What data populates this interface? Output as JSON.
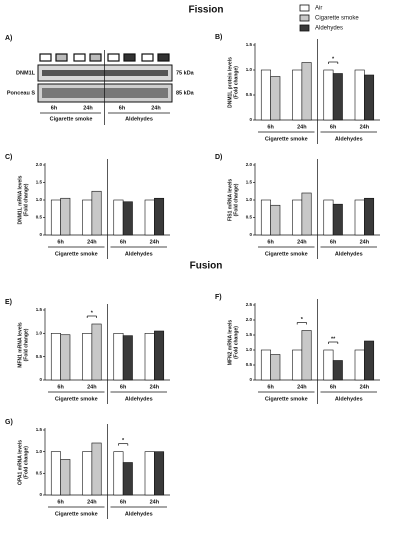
{
  "headings": [
    "Fission",
    "Fusion"
  ],
  "blot": {
    "panel": "A)",
    "bands": [
      "DNM1L",
      "Ponceau S"
    ],
    "weights": [
      "75 kDa",
      "85 kDa"
    ],
    "times": [
      "6h",
      "24h",
      "6h",
      "24h"
    ],
    "groups": [
      "Cigarette smoke",
      "Aldehydes"
    ]
  },
  "chart_data": [
    {
      "type": "bar",
      "panel": "B)",
      "ylabel": [
        "DNM1L protein levels",
        "(Fold change)"
      ],
      "categories": [
        "6h",
        "24h",
        "6h",
        "24h"
      ],
      "groups": [
        "Cigarette smoke",
        "Aldehydes"
      ],
      "series": [
        {
          "name": "Air",
          "color": "#ffffff",
          "values": [
            1.0,
            1.0,
            1.0,
            1.0
          ]
        },
        {
          "name": "Cigarette smoke",
          "color": "#c8c8c8",
          "values": [
            0.87,
            1.15,
            null,
            null
          ]
        },
        {
          "name": "Aldehydes",
          "color": "#3a3a3a",
          "values": [
            null,
            null,
            0.93,
            0.9
          ]
        }
      ],
      "significance": [
        null,
        null,
        "*",
        null
      ],
      "ylim": [
        0,
        1.5
      ],
      "yticks": [
        0,
        0.5,
        {
          "value": 1.0,
          "label": "1.0"
        },
        1.5
      ]
    },
    {
      "type": "bar",
      "panel": "C)",
      "ylabel": [
        "DNM1L mRNA levels",
        "(Fold change)"
      ],
      "categories": [
        "6h",
        "24h",
        "6h",
        "24h"
      ],
      "groups": [
        "Cigarette smoke",
        "Aldehydes"
      ],
      "series": [
        {
          "name": "Air",
          "color": "#ffffff",
          "values": [
            1.0,
            1.0,
            1.0,
            1.0
          ]
        },
        {
          "name": "Cigarette smoke",
          "color": "#c8c8c8",
          "values": [
            1.05,
            1.25,
            null,
            null
          ]
        },
        {
          "name": "Aldehydes",
          "color": "#3a3a3a",
          "values": [
            null,
            null,
            0.95,
            1.05
          ]
        }
      ],
      "significance": [
        null,
        null,
        null,
        null
      ],
      "ylim": [
        0,
        2.0
      ],
      "yticks": [
        0,
        0.5,
        {
          "value": 1.0,
          "label": "1.0"
        },
        1.5,
        {
          "value": 2.0,
          "label": "2.0"
        }
      ]
    },
    {
      "type": "bar",
      "panel": "D)",
      "ylabel": [
        "FIS1 mRNA levels",
        "(Fold change)"
      ],
      "categories": [
        "6h",
        "24h",
        "6h",
        "24h"
      ],
      "groups": [
        "Cigarette smoke",
        "Aldehydes"
      ],
      "series": [
        {
          "name": "Air",
          "color": "#ffffff",
          "values": [
            1.0,
            1.0,
            1.0,
            1.0
          ]
        },
        {
          "name": "Cigarette smoke",
          "color": "#c8c8c8",
          "values": [
            0.85,
            1.2,
            null,
            null
          ]
        },
        {
          "name": "Aldehydes",
          "color": "#3a3a3a",
          "values": [
            null,
            null,
            0.88,
            1.05
          ]
        }
      ],
      "significance": [
        null,
        null,
        null,
        null
      ],
      "ylim": [
        0,
        2.0
      ],
      "yticks": [
        0,
        0.5,
        {
          "value": 1.0,
          "label": "1.0"
        },
        1.5,
        {
          "value": 2.0,
          "label": "2.0"
        }
      ]
    },
    {
      "type": "bar",
      "panel": "E)",
      "ylabel": [
        "MFN1 mRNA levels",
        "(Fold change)"
      ],
      "categories": [
        "6h",
        "24h",
        "6h",
        "24h"
      ],
      "groups": [
        "Cigarette smoke",
        "Aldehydes"
      ],
      "series": [
        {
          "name": "Air",
          "color": "#ffffff",
          "values": [
            1.0,
            1.0,
            1.0,
            1.0
          ]
        },
        {
          "name": "Cigarette smoke",
          "color": "#c8c8c8",
          "values": [
            0.97,
            1.2,
            null,
            null
          ]
        },
        {
          "name": "Aldehydes",
          "color": "#3a3a3a",
          "values": [
            null,
            null,
            0.95,
            1.05
          ]
        }
      ],
      "significance": [
        null,
        "*",
        null,
        null
      ],
      "ylim": [
        0,
        1.5
      ],
      "yticks": [
        0,
        0.5,
        {
          "value": 1.0,
          "label": "1.0"
        },
        1.5
      ]
    },
    {
      "type": "bar",
      "panel": "F)",
      "ylabel": [
        "MFN2 mRNA levels",
        "(Fold change)"
      ],
      "categories": [
        "6h",
        "24h",
        "6h",
        "24h"
      ],
      "groups": [
        "Cigarette smoke",
        "Aldehydes"
      ],
      "series": [
        {
          "name": "Air",
          "color": "#ffffff",
          "values": [
            1.0,
            1.0,
            1.0,
            1.0
          ]
        },
        {
          "name": "Cigarette smoke",
          "color": "#c8c8c8",
          "values": [
            0.85,
            1.65,
            null,
            null
          ]
        },
        {
          "name": "Aldehydes",
          "color": "#3a3a3a",
          "values": [
            null,
            null,
            0.65,
            1.3
          ]
        }
      ],
      "significance": [
        null,
        "*",
        "**",
        null
      ],
      "ylim": [
        0,
        2.5
      ],
      "yticks": [
        0,
        0.5,
        {
          "value": 1.0,
          "label": "1.0"
        },
        1.5,
        {
          "value": 2.0,
          "label": "2.0"
        },
        2.5
      ]
    },
    {
      "type": "bar",
      "panel": "G)",
      "ylabel": [
        "OPA1 mRNA levels",
        "(Fold change)"
      ],
      "categories": [
        "6h",
        "24h",
        "6h",
        "24h"
      ],
      "groups": [
        "Cigarette smoke",
        "Aldehydes"
      ],
      "series": [
        {
          "name": "Air",
          "color": "#ffffff",
          "values": [
            1.0,
            1.0,
            1.0,
            1.0
          ]
        },
        {
          "name": "Cigarette smoke",
          "color": "#c8c8c8",
          "values": [
            0.82,
            1.2,
            null,
            null
          ]
        },
        {
          "name": "Aldehydes",
          "color": "#3a3a3a",
          "values": [
            null,
            null,
            0.75,
            1.0
          ]
        }
      ],
      "significance": [
        null,
        null,
        "*",
        null
      ],
      "ylim": [
        0,
        1.5
      ],
      "yticks": [
        0,
        0.5,
        {
          "value": 1.0,
          "label": "1.0"
        },
        1.5
      ]
    }
  ]
}
